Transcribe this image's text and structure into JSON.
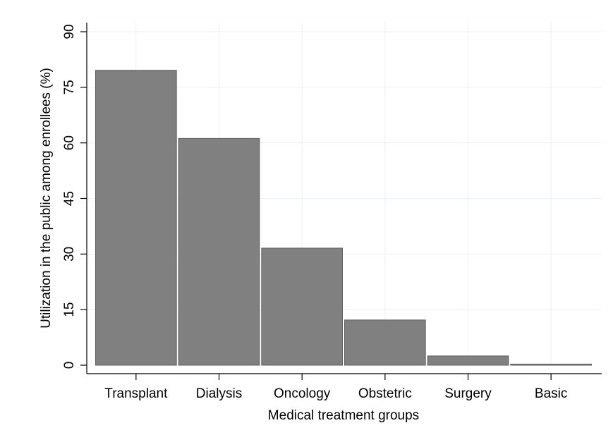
{
  "chart_data": {
    "type": "bar",
    "title": "",
    "xlabel": "Medical treatment groups",
    "ylabel": "Utilization in the public among enrollees (%)",
    "categories": [
      "Transplant",
      "Dialysis",
      "Oncology",
      "Obstetric",
      "Surgery",
      "Basic"
    ],
    "values": [
      79.6,
      61.2,
      31.6,
      12.2,
      2.5,
      0.3
    ],
    "ylim": [
      0,
      90
    ],
    "yticks": [
      0,
      15,
      30,
      45,
      60,
      75,
      90
    ],
    "ytick_labels": [
      "0",
      "15",
      "30",
      "45",
      "60",
      "75",
      "90"
    ],
    "grid": true,
    "legend": "none",
    "bar_color": "#808080",
    "bar_edge_color": "#5f5f5f",
    "grid_color": "#eaf0f4"
  }
}
